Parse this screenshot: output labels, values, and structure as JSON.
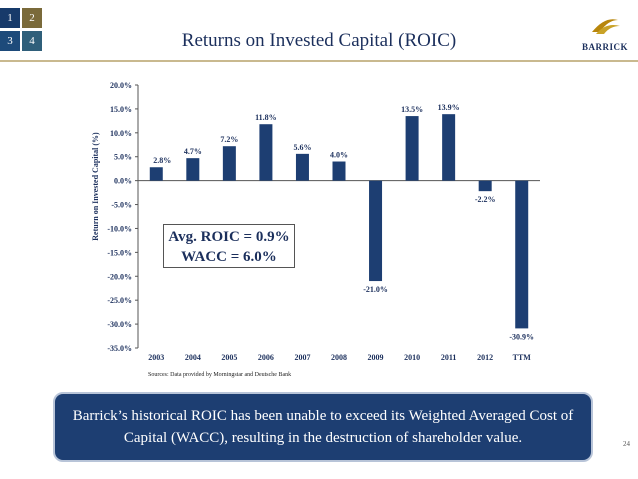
{
  "nav_tiles": [
    "1",
    "2",
    "3",
    "4"
  ],
  "slide_title": "Returns on Invested Capital (ROIC)",
  "logo_text": "BARRICK",
  "colors": {
    "bar": "#1d3e72",
    "title": "#1b2f5c",
    "rule": "#c9b98f"
  },
  "chart_data": {
    "type": "bar",
    "title": "",
    "ylabel": "Return on Invested Capital (%)",
    "xlabel": "",
    "categories": [
      "2003",
      "2004",
      "2005",
      "2006",
      "2007",
      "2008",
      "2009",
      "2010",
      "2011",
      "2012",
      "TTM"
    ],
    "values": [
      2.8,
      4.7,
      7.2,
      11.8,
      5.6,
      4.0,
      -21.0,
      13.5,
      13.9,
      -2.2,
      -30.9
    ],
    "data_labels": [
      "2.8%",
      "4.7%",
      "7.2%",
      "11.8%",
      "5.6%",
      "4.0%",
      "-21.0%",
      "13.5%",
      "13.9%",
      "-2.2%",
      "-30.9%"
    ],
    "ylim": [
      -35,
      20
    ],
    "yticks": [
      20,
      15,
      10,
      5,
      0,
      -5,
      -10,
      -15,
      -20,
      -25,
      -30,
      -35
    ],
    "ytick_labels": [
      "20.0%",
      "15.0%",
      "10.0%",
      "5.0%",
      "0.0%",
      "-5.0%",
      "-10.0%",
      "-15.0%",
      "-20.0%",
      "-25.0%",
      "-30.0%",
      "-35.0%"
    ],
    "grid": false
  },
  "annotation": {
    "line1": "Avg. ROIC = 0.9%",
    "line2": "WACC = 6.0%"
  },
  "source_text": "Sources: Data provided by Morningstar and Deutsche Bank",
  "callout_text": "Barrick’s historical ROIC has been unable to exceed its Weighted Averaged Cost of Capital (WACC), resulting in the destruction of shareholder value.",
  "page_number": "24"
}
